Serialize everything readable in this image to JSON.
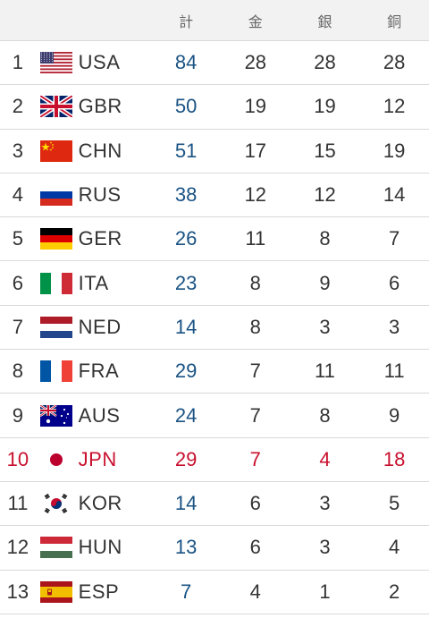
{
  "header": {
    "total": "計",
    "gold": "金",
    "silver": "銀",
    "bronze": "銅"
  },
  "rows": [
    {
      "rank": "1",
      "code": "USA",
      "flag": "usa-flag-icon",
      "total": "84",
      "gold": "28",
      "silver": "28",
      "bronze": "28",
      "highlight": false
    },
    {
      "rank": "2",
      "code": "GBR",
      "flag": "gbr-flag-icon",
      "total": "50",
      "gold": "19",
      "silver": "19",
      "bronze": "12",
      "highlight": false
    },
    {
      "rank": "3",
      "code": "CHN",
      "flag": "chn-flag-icon",
      "total": "51",
      "gold": "17",
      "silver": "15",
      "bronze": "19",
      "highlight": false
    },
    {
      "rank": "4",
      "code": "RUS",
      "flag": "rus-flag-icon",
      "total": "38",
      "gold": "12",
      "silver": "12",
      "bronze": "14",
      "highlight": false
    },
    {
      "rank": "5",
      "code": "GER",
      "flag": "ger-flag-icon",
      "total": "26",
      "gold": "11",
      "silver": "8",
      "bronze": "7",
      "highlight": false
    },
    {
      "rank": "6",
      "code": "ITA",
      "flag": "ita-flag-icon",
      "total": "23",
      "gold": "8",
      "silver": "9",
      "bronze": "6",
      "highlight": false
    },
    {
      "rank": "7",
      "code": "NED",
      "flag": "ned-flag-icon",
      "total": "14",
      "gold": "8",
      "silver": "3",
      "bronze": "3",
      "highlight": false
    },
    {
      "rank": "8",
      "code": "FRA",
      "flag": "fra-flag-icon",
      "total": "29",
      "gold": "7",
      "silver": "11",
      "bronze": "11",
      "highlight": false
    },
    {
      "rank": "9",
      "code": "AUS",
      "flag": "aus-flag-icon",
      "total": "24",
      "gold": "7",
      "silver": "8",
      "bronze": "9",
      "highlight": false
    },
    {
      "rank": "10",
      "code": "JPN",
      "flag": "jpn-flag-icon",
      "total": "29",
      "gold": "7",
      "silver": "4",
      "bronze": "18",
      "highlight": true
    },
    {
      "rank": "11",
      "code": "KOR",
      "flag": "kor-flag-icon",
      "total": "14",
      "gold": "6",
      "silver": "3",
      "bronze": "5",
      "highlight": false
    },
    {
      "rank": "12",
      "code": "HUN",
      "flag": "hun-flag-icon",
      "total": "13",
      "gold": "6",
      "silver": "3",
      "bronze": "4",
      "highlight": false
    },
    {
      "rank": "13",
      "code": "ESP",
      "flag": "esp-flag-icon",
      "total": "7",
      "gold": "4",
      "silver": "1",
      "bronze": "2",
      "highlight": false
    }
  ],
  "colors": {
    "highlight": "#c8102e",
    "total": "#1a5384",
    "header_bg": "#f2f2f2",
    "divider": "#d9d9d9"
  }
}
